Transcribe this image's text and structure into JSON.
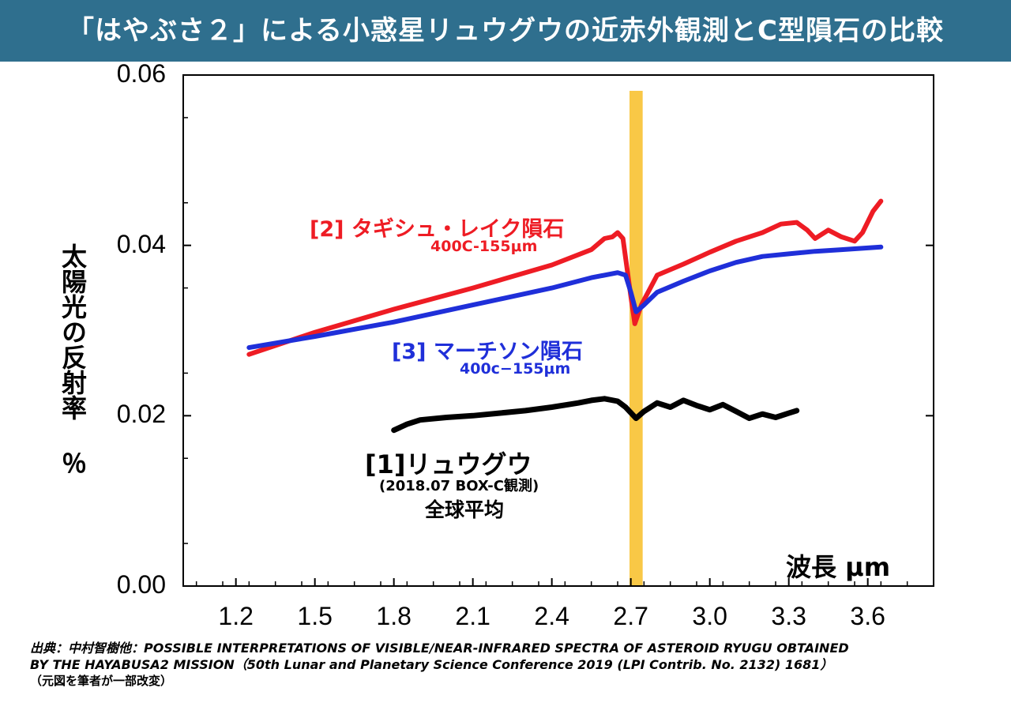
{
  "header": {
    "title": "「はやぶさ２」による小惑星リュウグウの近赤外観測とC型隕石の比較"
  },
  "chart_data": {
    "type": "line",
    "title": "「はやぶさ２」による小惑星リュウグウの近赤外観測とC型隕石の比較",
    "xlabel": "波長 μm",
    "ylabel": "太陽光の反射率 ％",
    "xlim": [
      1.0,
      3.85
    ],
    "ylim": [
      0.0,
      0.06
    ],
    "x_ticks": [
      "1.2",
      "1.5",
      "1.8",
      "2.1",
      "2.4",
      "2.7",
      "3.0",
      "3.3",
      "3.6"
    ],
    "y_ticks": [
      "0.00",
      "0.02",
      "0.04",
      "0.06"
    ],
    "highlight_band": {
      "x_start": 2.695,
      "x_end": 2.715,
      "color": "#f9c846"
    },
    "series": [
      {
        "name": "タギシュ・レイク隕石",
        "label_number": "[2]",
        "label_sub": "400C-155μm",
        "color": "#ee1c24",
        "points": [
          [
            1.25,
            0.0272
          ],
          [
            1.5,
            0.0298
          ],
          [
            1.8,
            0.0325
          ],
          [
            2.1,
            0.035
          ],
          [
            2.4,
            0.0377
          ],
          [
            2.55,
            0.0395
          ],
          [
            2.6,
            0.0408
          ],
          [
            2.63,
            0.041
          ],
          [
            2.65,
            0.0415
          ],
          [
            2.67,
            0.0408
          ],
          [
            2.7,
            0.034
          ],
          [
            2.715,
            0.0308
          ],
          [
            2.74,
            0.033
          ],
          [
            2.8,
            0.0365
          ],
          [
            2.9,
            0.0378
          ],
          [
            3.0,
            0.0392
          ],
          [
            3.1,
            0.0405
          ],
          [
            3.2,
            0.0415
          ],
          [
            3.27,
            0.0425
          ],
          [
            3.33,
            0.0427
          ],
          [
            3.37,
            0.0418
          ],
          [
            3.4,
            0.0408
          ],
          [
            3.45,
            0.0418
          ],
          [
            3.5,
            0.041
          ],
          [
            3.55,
            0.0405
          ],
          [
            3.58,
            0.0415
          ],
          [
            3.62,
            0.044
          ],
          [
            3.65,
            0.0452
          ]
        ]
      },
      {
        "name": "マーチソン隕石",
        "label_number": "[3]",
        "label_sub": "400c−155μm",
        "color": "#1f2fd9",
        "points": [
          [
            1.25,
            0.028
          ],
          [
            1.5,
            0.0293
          ],
          [
            1.8,
            0.031
          ],
          [
            2.1,
            0.033
          ],
          [
            2.4,
            0.035
          ],
          [
            2.55,
            0.0362
          ],
          [
            2.65,
            0.0368
          ],
          [
            2.68,
            0.0365
          ],
          [
            2.7,
            0.0345
          ],
          [
            2.72,
            0.0322
          ],
          [
            2.75,
            0.033
          ],
          [
            2.8,
            0.0345
          ],
          [
            2.9,
            0.0358
          ],
          [
            3.0,
            0.037
          ],
          [
            3.1,
            0.038
          ],
          [
            3.2,
            0.0387
          ],
          [
            3.3,
            0.039
          ],
          [
            3.4,
            0.0393
          ],
          [
            3.5,
            0.0395
          ],
          [
            3.6,
            0.0397
          ],
          [
            3.65,
            0.0398
          ]
        ]
      },
      {
        "name": "リュウグウ",
        "label_number": "[1]",
        "label_sub": "(2018.07 BOX-C観測)",
        "label_sub2": "全球平均",
        "color": "#000000",
        "points": [
          [
            1.8,
            0.0183
          ],
          [
            1.85,
            0.019
          ],
          [
            1.9,
            0.0195
          ],
          [
            2.0,
            0.0198
          ],
          [
            2.1,
            0.02
          ],
          [
            2.2,
            0.0203
          ],
          [
            2.3,
            0.0206
          ],
          [
            2.4,
            0.021
          ],
          [
            2.5,
            0.0215
          ],
          [
            2.55,
            0.0218
          ],
          [
            2.6,
            0.022
          ],
          [
            2.65,
            0.0217
          ],
          [
            2.68,
            0.021
          ],
          [
            2.72,
            0.0197
          ],
          [
            2.75,
            0.0205
          ],
          [
            2.8,
            0.0215
          ],
          [
            2.85,
            0.021
          ],
          [
            2.9,
            0.0218
          ],
          [
            2.95,
            0.0212
          ],
          [
            3.0,
            0.0207
          ],
          [
            3.05,
            0.0213
          ],
          [
            3.1,
            0.0205
          ],
          [
            3.15,
            0.0197
          ],
          [
            3.2,
            0.0202
          ],
          [
            3.25,
            0.0198
          ],
          [
            3.3,
            0.0203
          ],
          [
            3.33,
            0.0206
          ]
        ]
      }
    ]
  },
  "source": {
    "line1": "出典：中村智樹他：POSSIBLE INTERPRETATIONS OF VISIBLE/NEAR-INFRARED SPECTRA OF ASTEROID RYUGU OBTAINED",
    "line2": "BY THE HAYABUSA2 MISSION（50th Lunar and Planetary Science Conference 2019 (LPI Contrib. No. 2132) 1681）",
    "note": "（元図を筆者が一部改変）"
  }
}
